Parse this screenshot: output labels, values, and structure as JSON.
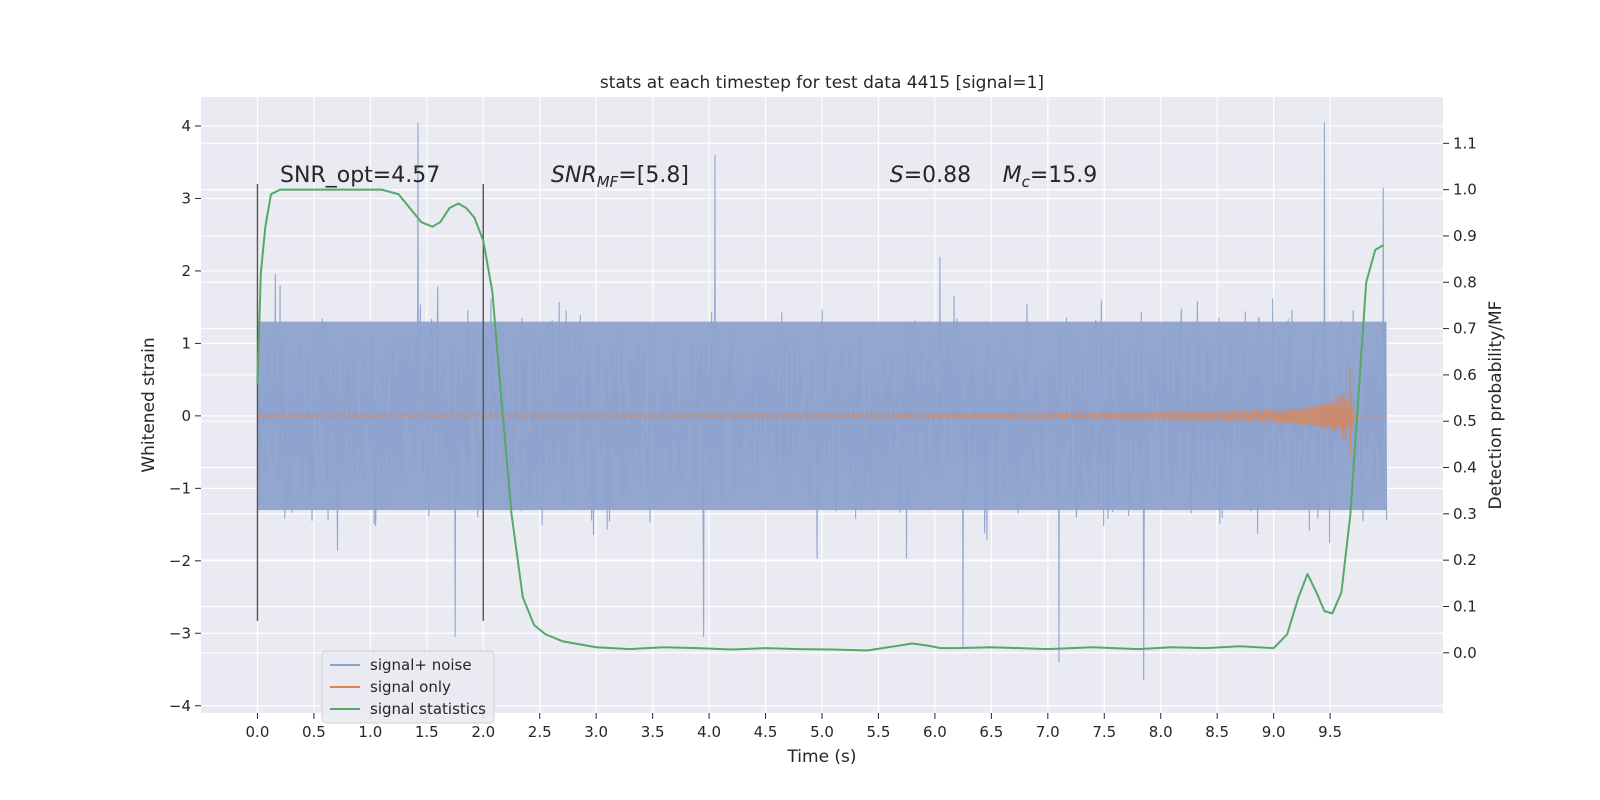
{
  "chart_data": {
    "type": "line",
    "title": "stats at each timestep for test data 4415 [signal=1]",
    "xlabel": "Time (s)",
    "ylabel": "Whitened strain",
    "y2label": "Detection probability/MF",
    "xlim": [
      -0.5,
      10.5
    ],
    "ylim": [
      -4.1,
      4.4
    ],
    "y2lim": [
      -0.13,
      1.2
    ],
    "x_ticks": [
      "0.0",
      "0.5",
      "1.0",
      "1.5",
      "2.0",
      "2.5",
      "3.0",
      "3.5",
      "4.0",
      "4.5",
      "5.0",
      "5.5",
      "6.0",
      "6.5",
      "7.0",
      "7.5",
      "8.0",
      "8.5",
      "9.0",
      "9.5"
    ],
    "y_ticks": [
      "−4",
      "−3",
      "−2",
      "−1",
      "0",
      "1",
      "2",
      "3",
      "4"
    ],
    "y2_ticks": [
      "0.0",
      "0.1",
      "0.2",
      "0.3",
      "0.4",
      "0.5",
      "0.6",
      "0.7",
      "0.8",
      "0.9",
      "1.0",
      "1.1"
    ],
    "grid": true,
    "legend_position": "lower-left",
    "annotations": [
      {
        "text": "SNR_opt=4.57",
        "x": 0.2,
        "y": 3.2
      },
      {
        "text": "SNR",
        "sub": "MF",
        "rest": "=[5.8]",
        "italic_main": true,
        "x": 2.6,
        "y": 3.2
      },
      {
        "text": "S",
        "rest": "=0.88",
        "italic_main": true,
        "x": 5.6,
        "y": 3.2
      },
      {
        "text": "M",
        "sub": "c",
        "rest": "=15.9",
        "italic_main": true,
        "x": 6.6,
        "y": 3.2
      }
    ],
    "vertical_markers": [
      0.0,
      2.0
    ],
    "marker_y_range": [
      -2.83,
      3.2
    ],
    "series": [
      {
        "name": "signal+ noise",
        "color": "#8da2cd",
        "kind": "noise",
        "x_range": [
          0,
          10
        ],
        "core_amplitude": 1.3,
        "typical_extremes": [
          -2.5,
          2.7
        ],
        "peaks": [
          [
            1.42,
            4.05
          ],
          [
            1.75,
            -3.05
          ],
          [
            3.95,
            -3.05
          ],
          [
            4.05,
            3.6
          ],
          [
            6.25,
            -3.2
          ],
          [
            7.1,
            -3.4
          ],
          [
            7.85,
            -3.65
          ],
          [
            9.45,
            4.05
          ],
          [
            9.97,
            3.15
          ]
        ]
      },
      {
        "name": "signal only",
        "color": "#dd8452",
        "kind": "chirp",
        "x_range": [
          0,
          10
        ],
        "peak_time": 9.68,
        "peak_amplitude": 0.8
      },
      {
        "name": "signal statistics",
        "color": "#55a868",
        "axis": "right",
        "x": [
          0.0,
          0.03,
          0.07,
          0.12,
          0.2,
          0.4,
          0.8,
          1.1,
          1.25,
          1.35,
          1.45,
          1.55,
          1.62,
          1.7,
          1.78,
          1.85,
          1.92,
          2.0,
          2.08,
          2.16,
          2.25,
          2.35,
          2.45,
          2.55,
          2.7,
          3.0,
          3.3,
          3.6,
          3.9,
          4.2,
          4.5,
          4.8,
          5.1,
          5.4,
          5.8,
          5.95,
          6.05,
          6.2,
          6.5,
          7.0,
          7.4,
          7.8,
          8.1,
          8.4,
          8.7,
          9.0,
          9.12,
          9.22,
          9.3,
          9.38,
          9.45,
          9.52,
          9.6,
          9.68,
          9.75,
          9.82,
          9.9,
          9.97
        ],
        "y": [
          0.58,
          0.82,
          0.92,
          0.99,
          1.0,
          1.0,
          1.0,
          1.0,
          0.99,
          0.96,
          0.93,
          0.92,
          0.93,
          0.96,
          0.97,
          0.96,
          0.94,
          0.89,
          0.78,
          0.55,
          0.3,
          0.12,
          0.06,
          0.04,
          0.025,
          0.012,
          0.008,
          0.012,
          0.01,
          0.007,
          0.01,
          0.008,
          0.007,
          0.005,
          0.02,
          0.015,
          0.01,
          0.01,
          0.012,
          0.008,
          0.012,
          0.008,
          0.012,
          0.01,
          0.014,
          0.01,
          0.04,
          0.12,
          0.17,
          0.13,
          0.09,
          0.085,
          0.13,
          0.3,
          0.55,
          0.8,
          0.87,
          0.88
        ]
      }
    ]
  }
}
